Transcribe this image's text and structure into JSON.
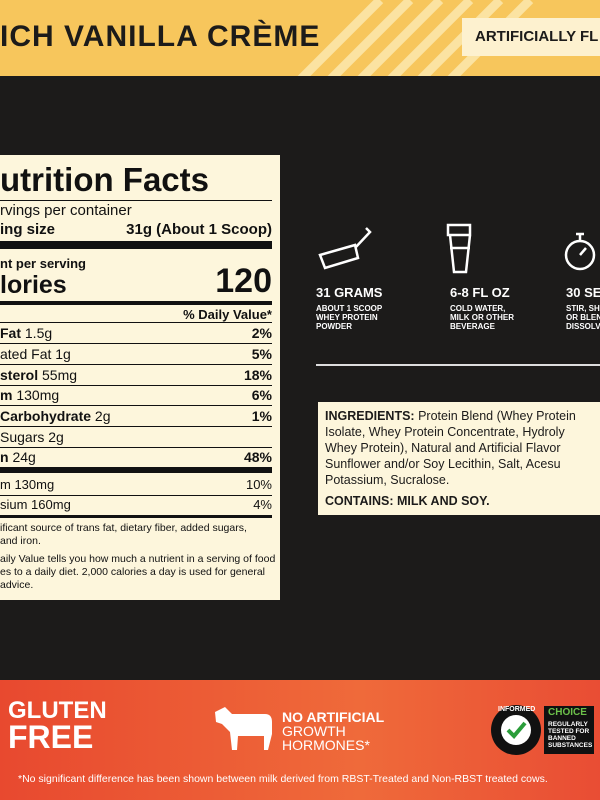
{
  "header": {
    "flavor": "ICH VANILLA CRÈME",
    "note": "ARTIFICIALLY FL"
  },
  "nutrition": {
    "title": "utrition Facts",
    "servings": "rvings per container",
    "serving_size_label": "ing size",
    "serving_size": "31g (About 1 Scoop)",
    "amount_per_serving": "nt per serving",
    "calories_label": "lories",
    "calories": "120",
    "daily_value_header": "% Daily Value*",
    "rows": [
      {
        "name": "Fat",
        "amount": "1.5g",
        "dv": "2%"
      },
      {
        "name": "ated Fat 1g",
        "dv": "5%"
      },
      {
        "name": "sterol",
        "amount": "55mg",
        "dv": "18%"
      },
      {
        "name": "m",
        "amount": "130mg",
        "dv": "6%"
      },
      {
        "name": "Carbohydrate",
        "amount": "2g",
        "dv": "1%"
      },
      {
        "name": "Sugars 2g"
      },
      {
        "name": "n",
        "amount": "24g",
        "dv": "48%"
      },
      {
        "name": "m 130mg",
        "dv": "10%"
      },
      {
        "name": "sium 160mg",
        "dv": "4%"
      }
    ],
    "note1": [
      "ificant source of trans fat, dietary fiber, added sugars,",
      "and iron."
    ],
    "note2": [
      "aily Value tells you how much a nutrient in a serving of food",
      "es to a daily diet. 2,000 calories a day is used for general",
      "advice."
    ]
  },
  "steps": [
    {
      "title": "31 GRAMS",
      "text": [
        "ABOUT 1 SCOOP",
        "WHEY PROTEIN",
        "POWDER"
      ]
    },
    {
      "title": "6-8 FL OZ",
      "text": [
        "COLD WATER,",
        "MILK OR OTHER",
        "BEVERAGE"
      ]
    },
    {
      "title": "30 SE",
      "text": [
        "STIR, SH",
        "OR BLEN",
        "DISSOLV"
      ]
    }
  ],
  "ingredients": {
    "label": "INGREDIENTS:",
    "lines": [
      "Protein Blend (Whey Protein",
      "Isolate, Whey Protein Concentrate, Hydroly",
      "Whey Protein), Natural and Artificial Flavor",
      "Sunflower and/or Soy Lecithin, Salt, Acesu",
      "Potassium, Sucralose."
    ],
    "contains": "CONTAINS: MILK AND SOY."
  },
  "badges": {
    "gluten": [
      "GLUTEN",
      "FREE"
    ],
    "hormones": [
      "NO ARTIFICIAL",
      "GROWTH",
      "HORMONES*"
    ],
    "informed": "INFORMED",
    "choice": "CHOICE",
    "choice_text": [
      "REGULARLY",
      "TESTED FOR",
      "BANNED",
      "SUBSTANCES"
    ]
  },
  "footnote": "*No significant difference has been shown between milk derived from RBST-Treated and Non-RBST treated cows."
}
